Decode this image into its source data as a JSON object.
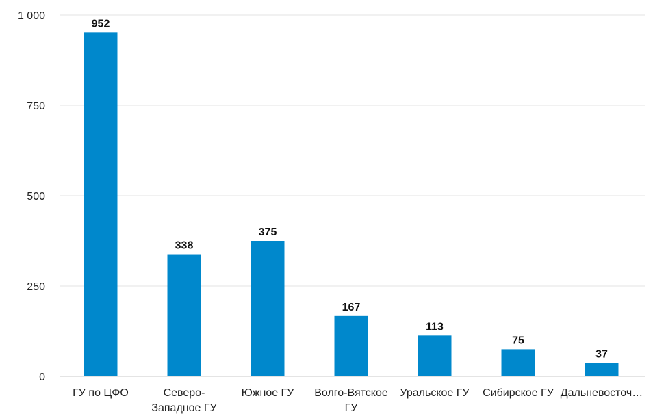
{
  "chart_data": {
    "type": "bar",
    "categories": [
      [
        "ГУ по ЦФО"
      ],
      [
        "Северо-",
        "Западное ГУ"
      ],
      [
        "Южное ГУ"
      ],
      [
        "Волго-Вятское",
        "ГУ"
      ],
      [
        "Уральское ГУ"
      ],
      [
        "Сибирское ГУ"
      ],
      [
        "Дальневосточ…"
      ]
    ],
    "values": [
      952,
      338,
      375,
      167,
      113,
      75,
      37
    ],
    "data_labels": [
      "952",
      "338",
      "375",
      "167",
      "113",
      "75",
      "37"
    ],
    "yticks": [
      {
        "value": 0,
        "label": "0"
      },
      {
        "value": 250,
        "label": "250"
      },
      {
        "value": 500,
        "label": "500"
      },
      {
        "value": 750,
        "label": "750"
      },
      {
        "value": 1000,
        "label": "1 000"
      }
    ],
    "ylim": [
      0,
      1000
    ],
    "grid": true,
    "legend": "none",
    "title": "",
    "xlabel": "",
    "ylabel": "",
    "colors": {
      "bar": "#0088cc",
      "grid": "#e3e3e3",
      "axis": "#c8c8c8"
    }
  }
}
